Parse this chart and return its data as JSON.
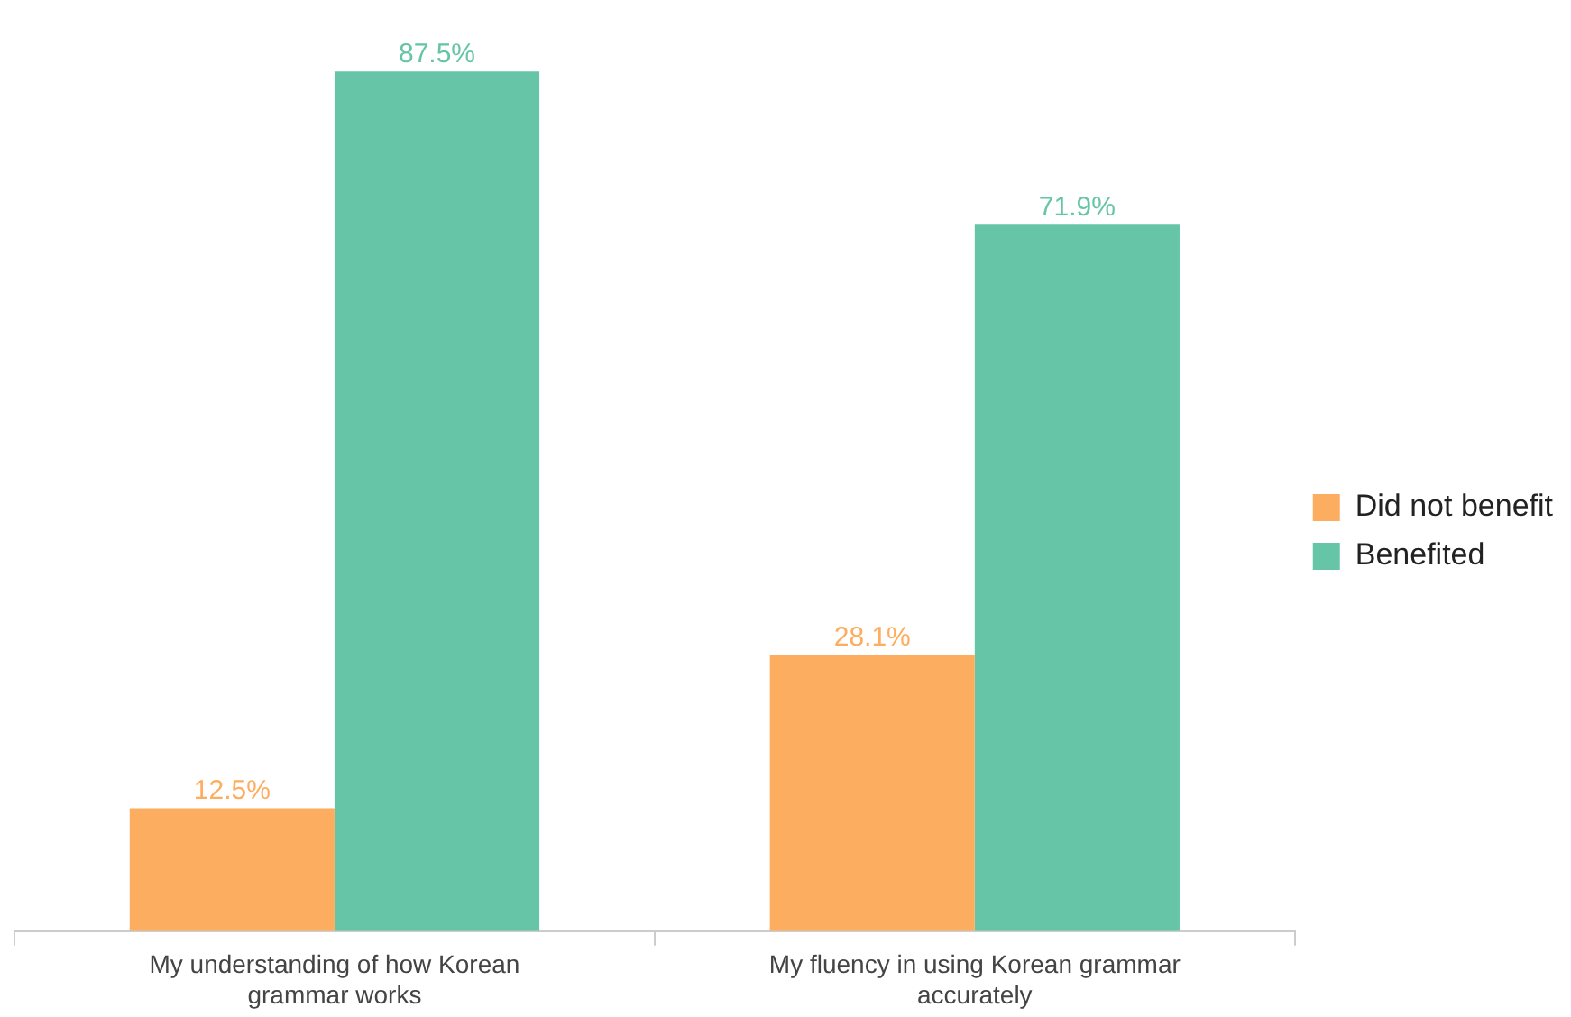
{
  "chart_data": {
    "type": "bar",
    "categories": [
      "My understanding of how Korean grammar works",
      "My fluency in using Korean grammar accurately"
    ],
    "series": [
      {
        "name": "Did not benefit",
        "color": "#fdad5f",
        "values": [
          12.5,
          28.1
        ],
        "value_labels": [
          "12.5%",
          "28.1%"
        ]
      },
      {
        "name": "Benefited",
        "color": "#66c5a7",
        "values": [
          87.5,
          71.9
        ],
        "value_labels": [
          "87.5%",
          "71.9%"
        ]
      }
    ],
    "legend": "right",
    "grid": false
  }
}
